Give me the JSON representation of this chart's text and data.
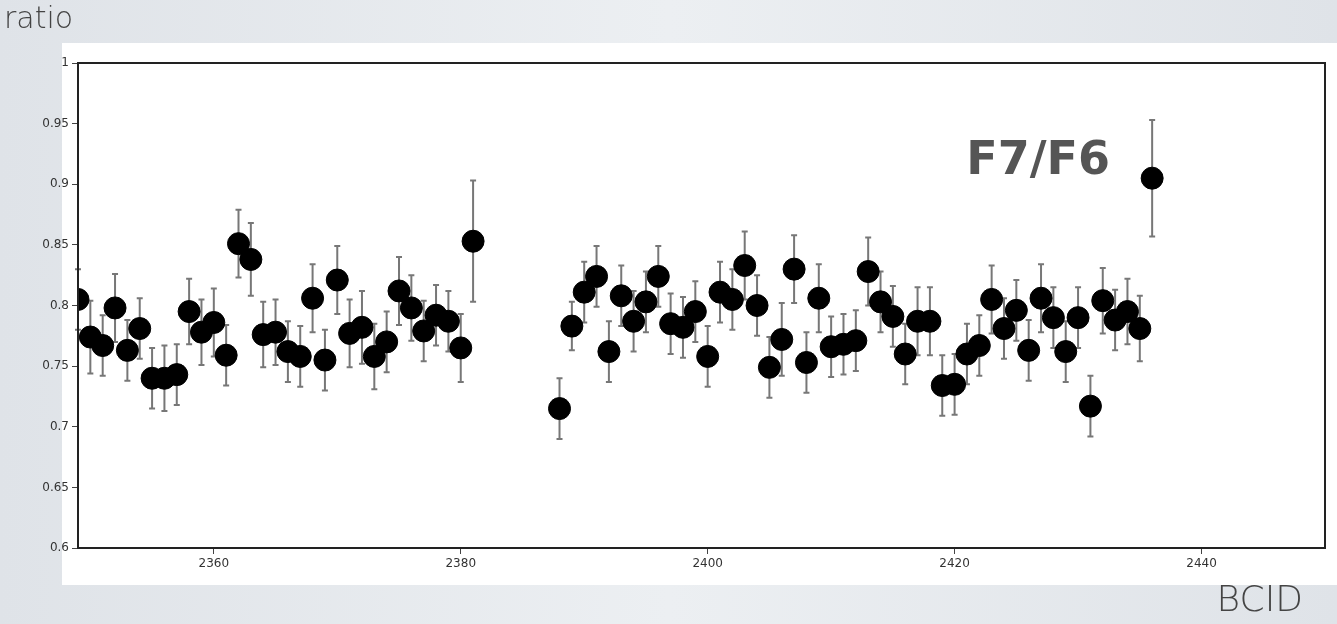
{
  "chart_data": {
    "type": "scatter",
    "xlabel": "BCID",
    "ylabel": "ratio",
    "annotations": [
      "F7/F6"
    ],
    "marker": "circle",
    "grid": false,
    "legend": false,
    "x": [
      2349,
      2350,
      2351,
      2352,
      2353,
      2354,
      2355,
      2356,
      2357,
      2358,
      2359,
      2360,
      2361,
      2362,
      2363,
      2364,
      2365,
      2366,
      2367,
      2368,
      2369,
      2370,
      2371,
      2372,
      2373,
      2374,
      2375,
      2376,
      2377,
      2378,
      2379,
      2380,
      2381,
      2388,
      2389,
      2390,
      2391,
      2392,
      2393,
      2394,
      2395,
      2396,
      2397,
      2398,
      2399,
      2400,
      2401,
      2402,
      2403,
      2404,
      2405,
      2406,
      2407,
      2408,
      2409,
      2410,
      2411,
      2412,
      2413,
      2414,
      2415,
      2416,
      2417,
      2418,
      2419,
      2420,
      2421,
      2422,
      2423,
      2424,
      2425,
      2426,
      2427,
      2428,
      2429,
      2430,
      2431,
      2432,
      2433,
      2434,
      2435,
      2436
    ],
    "values": [
      0.805,
      0.774,
      0.767,
      0.798,
      0.763,
      0.781,
      0.74,
      0.74,
      0.743,
      0.795,
      0.778,
      0.786,
      0.759,
      0.851,
      0.838,
      0.776,
      0.778,
      0.762,
      0.758,
      0.806,
      0.755,
      0.821,
      0.777,
      0.782,
      0.758,
      0.77,
      0.812,
      0.798,
      0.779,
      0.792,
      0.787,
      0.765,
      0.853,
      0.715,
      0.783,
      0.811,
      0.824,
      0.762,
      0.808,
      0.787,
      0.803,
      0.824,
      0.785,
      0.782,
      0.795,
      0.758,
      0.811,
      0.805,
      0.833,
      0.8,
      0.749,
      0.772,
      0.83,
      0.753,
      0.806,
      0.766,
      0.768,
      0.771,
      0.828,
      0.803,
      0.791,
      0.76,
      0.787,
      0.787,
      0.734,
      0.735,
      0.76,
      0.767,
      0.805,
      0.781,
      0.796,
      0.763,
      0.806,
      0.79,
      0.762,
      0.79,
      0.717,
      0.804,
      0.788,
      0.795,
      0.781,
      0.905
    ],
    "errors": [
      0.025,
      0.03,
      0.025,
      0.028,
      0.025,
      0.025,
      0.025,
      0.027,
      0.025,
      0.027,
      0.027,
      0.028,
      0.025,
      0.028,
      0.03,
      0.027,
      0.027,
      0.025,
      0.025,
      0.028,
      0.025,
      0.028,
      0.028,
      0.03,
      0.027,
      0.025,
      0.028,
      0.027,
      0.025,
      0.025,
      0.025,
      0.028,
      0.05,
      0.025,
      0.02,
      0.025,
      0.025,
      0.025,
      0.025,
      0.025,
      0.025,
      0.025,
      0.025,
      0.025,
      0.025,
      0.025,
      0.025,
      0.025,
      0.028,
      0.025,
      0.025,
      0.03,
      0.028,
      0.025,
      0.028,
      0.025,
      0.025,
      0.025,
      0.028,
      0.025,
      0.025,
      0.025,
      0.028,
      0.028,
      0.025,
      0.025,
      0.025,
      0.025,
      0.028,
      0.025,
      0.025,
      0.025,
      0.028,
      0.025,
      0.025,
      0.025,
      0.025,
      0.027,
      0.025,
      0.027,
      0.027,
      0.048
    ],
    "color": "#000000",
    "xlim": [
      2349,
      2450
    ],
    "xticks": [
      2360,
      2380,
      2400,
      2420,
      2440
    ],
    "ylim": [
      0.6,
      1
    ],
    "yticks": [
      0.6,
      0.65,
      0.7,
      0.75,
      0.8,
      0.85,
      0.9,
      0.95,
      1
    ]
  }
}
